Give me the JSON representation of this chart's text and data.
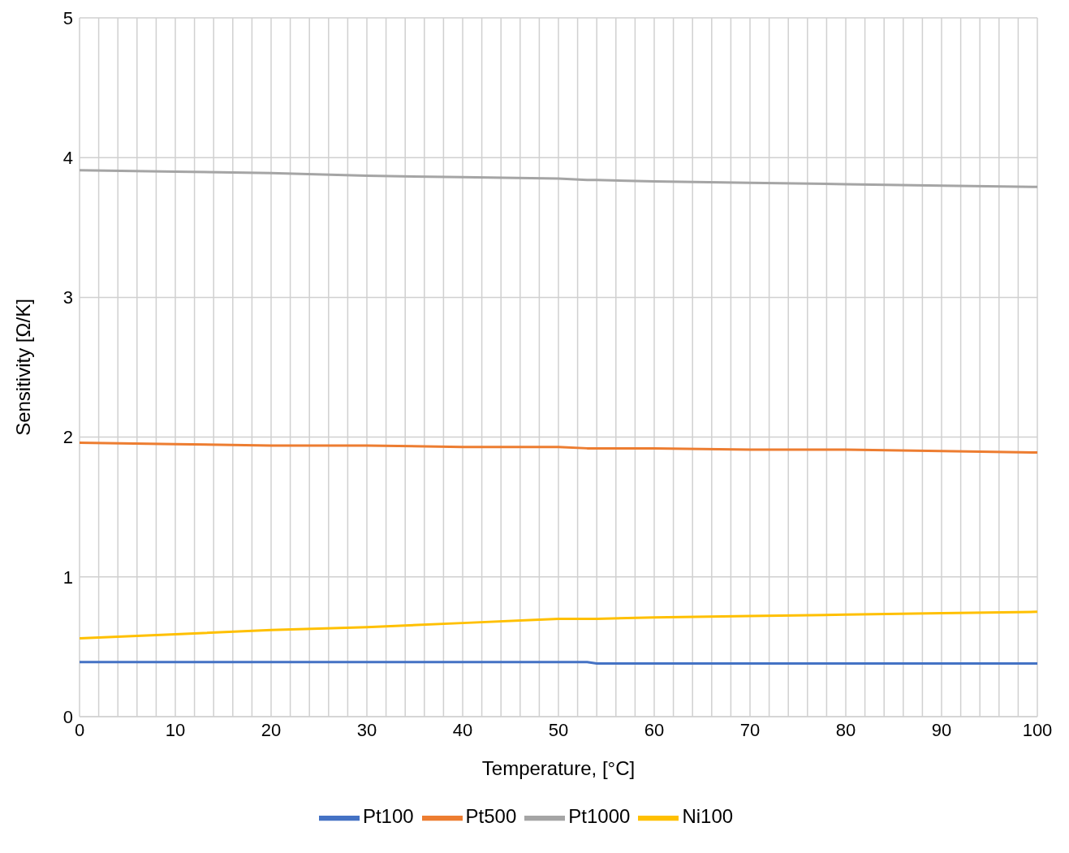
{
  "chart_data": {
    "type": "line",
    "xlabel": "Temperature, [°C]",
    "ylabel": "Sensitivity [Ω/K]",
    "x": [
      0,
      10,
      20,
      30,
      40,
      50,
      53,
      54,
      60,
      70,
      80,
      90,
      100
    ],
    "series": [
      {
        "name": "Pt100",
        "color": "#4472c4",
        "values": [
          0.39,
          0.39,
          0.39,
          0.39,
          0.39,
          0.39,
          0.39,
          0.38,
          0.38,
          0.38,
          0.38,
          0.38,
          0.38
        ]
      },
      {
        "name": "Pt500",
        "color": "#ed7d31",
        "values": [
          1.96,
          1.95,
          1.94,
          1.94,
          1.93,
          1.93,
          1.92,
          1.92,
          1.92,
          1.91,
          1.91,
          1.9,
          1.89
        ]
      },
      {
        "name": "Pt1000",
        "color": "#a5a5a5",
        "values": [
          3.91,
          3.9,
          3.89,
          3.87,
          3.86,
          3.85,
          3.84,
          3.84,
          3.83,
          3.82,
          3.81,
          3.8,
          3.79
        ]
      },
      {
        "name": "Ni100",
        "color": "#ffc000",
        "values": [
          0.56,
          0.59,
          0.62,
          0.64,
          0.67,
          0.7,
          0.7,
          0.7,
          0.71,
          0.72,
          0.73,
          0.74,
          0.75
        ]
      }
    ],
    "xlim": [
      0,
      100
    ],
    "xticks": [
      0,
      {
        "value": 2,
        "label": null
      },
      {
        "value": 4,
        "label": null
      },
      {
        "value": 6,
        "label": null
      },
      {
        "value": 8,
        "label": null
      },
      10,
      {
        "value": 12,
        "label": null
      },
      {
        "value": 14,
        "label": null
      },
      {
        "value": 16,
        "label": null
      },
      {
        "value": 18,
        "label": null
      },
      20,
      {
        "value": 22,
        "label": null
      },
      {
        "value": 24,
        "label": null
      },
      {
        "value": 26,
        "label": null
      },
      {
        "value": 28,
        "label": null
      },
      30,
      {
        "value": 32,
        "label": null
      },
      {
        "value": 34,
        "label": null
      },
      {
        "value": 36,
        "label": null
      },
      {
        "value": 38,
        "label": null
      },
      40,
      {
        "value": 42,
        "label": null
      },
      {
        "value": 44,
        "label": null
      },
      {
        "value": 46,
        "label": null
      },
      {
        "value": 48,
        "label": null
      },
      50,
      {
        "value": 52,
        "label": null
      },
      {
        "value": 54,
        "label": null
      },
      {
        "value": 56,
        "label": null
      },
      {
        "value": 58,
        "label": null
      },
      60,
      {
        "value": 62,
        "label": null
      },
      {
        "value": 64,
        "label": null
      },
      {
        "value": 66,
        "label": null
      },
      {
        "value": 68,
        "label": null
      },
      70,
      {
        "value": 72,
        "label": null
      },
      {
        "value": 74,
        "label": null
      },
      {
        "value": 76,
        "label": null
      },
      {
        "value": 78,
        "label": null
      },
      80,
      {
        "value": 82,
        "label": null
      },
      {
        "value": 84,
        "label": null
      },
      {
        "value": 86,
        "label": null
      },
      {
        "value": 88,
        "label": null
      },
      90,
      {
        "value": 92,
        "label": null
      },
      {
        "value": 94,
        "label": null
      },
      {
        "value": 96,
        "label": null
      },
      {
        "value": 98,
        "label": null
      },
      100
    ],
    "ylim": [
      0,
      5
    ],
    "yticks": [
      0,
      1,
      2,
      3,
      4,
      5
    ],
    "grid": true,
    "legend": "bottom",
    "marker": "none",
    "line_style": "solid"
  }
}
